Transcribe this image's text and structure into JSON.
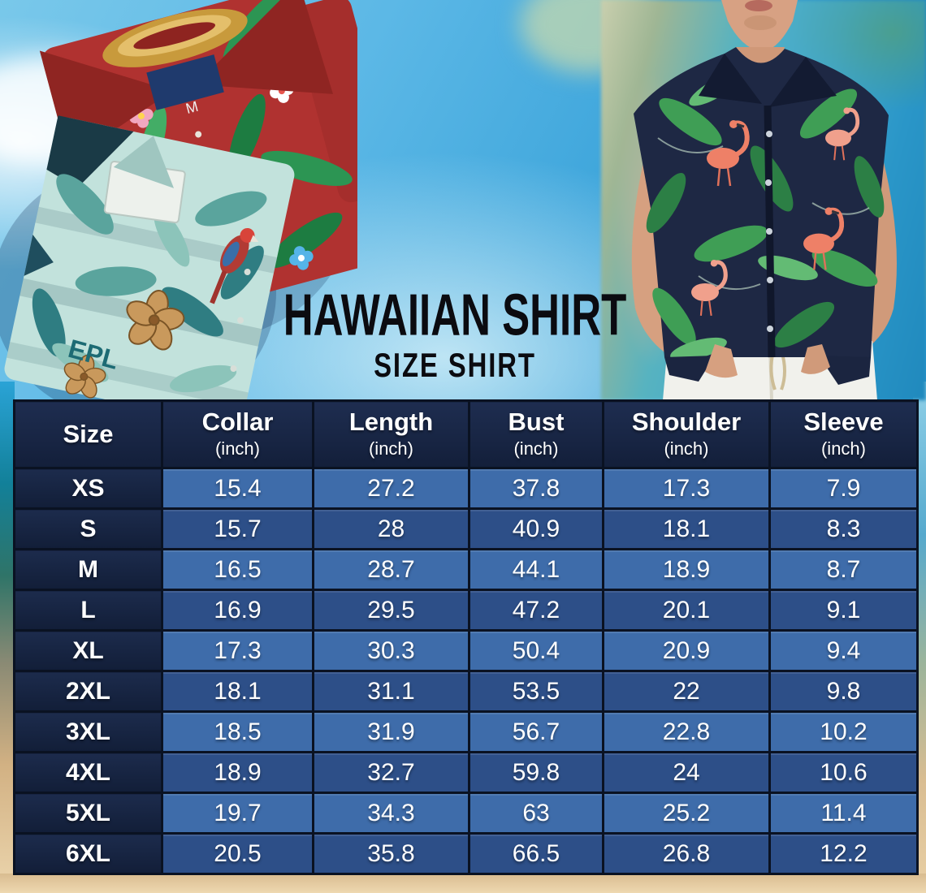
{
  "page": {
    "title": "HAWAIIAN SHIRT",
    "subtitle": "SIZE SHIRT"
  },
  "photos": {
    "red_shirt_size_tag": "M",
    "teal_shirt_print": "EPL"
  },
  "chart_data": {
    "type": "table",
    "title": "Hawaiian Shirt Size Chart",
    "unit": "inch",
    "columns": [
      {
        "label": "Size",
        "sub": ""
      },
      {
        "label": "Collar",
        "sub": "(inch)"
      },
      {
        "label": "Length",
        "sub": "(inch)"
      },
      {
        "label": "Bust",
        "sub": "(inch)"
      },
      {
        "label": "Shoulder",
        "sub": "(inch)"
      },
      {
        "label": "Sleeve",
        "sub": "(inch)"
      }
    ],
    "rows": [
      {
        "size": "XS",
        "values": [
          15.4,
          27.2,
          37.8,
          17.3,
          7.9
        ]
      },
      {
        "size": "S",
        "values": [
          15.7,
          28,
          40.9,
          18.1,
          8.3
        ]
      },
      {
        "size": "M",
        "values": [
          16.5,
          28.7,
          44.1,
          18.9,
          8.7
        ]
      },
      {
        "size": "L",
        "values": [
          16.9,
          29.5,
          47.2,
          20.1,
          9.1
        ]
      },
      {
        "size": "XL",
        "values": [
          17.3,
          30.3,
          50.4,
          20.9,
          9.4
        ]
      },
      {
        "size": "2XL",
        "values": [
          18.1,
          31.1,
          53.5,
          22,
          9.8
        ]
      },
      {
        "size": "3XL",
        "values": [
          18.5,
          31.9,
          56.7,
          22.8,
          10.2
        ]
      },
      {
        "size": "4XL",
        "values": [
          18.9,
          32.7,
          59.8,
          24,
          10.6
        ]
      },
      {
        "size": "5XL",
        "values": [
          19.7,
          34.3,
          63,
          25.2,
          11.4
        ]
      },
      {
        "size": "6XL",
        "values": [
          20.5,
          35.8,
          66.5,
          26.8,
          12.2
        ]
      }
    ],
    "layout": {
      "header_position": "top",
      "first_column_is_row_header": true
    }
  },
  "colors": {
    "header_bg": "#16233f",
    "row_light": "#3e6caa",
    "row_dark": "#2d4f88",
    "cell_border": "#0a1222",
    "table_text": "#ffffff",
    "title_text": "#0b0b10",
    "sky_blue": "#35a0d8",
    "sand": "#ecd6ae",
    "shirt_red": "#b03230",
    "shirt_teal": "#c2e2dc",
    "shirt_navy": "#1e2844",
    "flamingo": "#ee8067",
    "leaf_green": "#3f9e55"
  }
}
